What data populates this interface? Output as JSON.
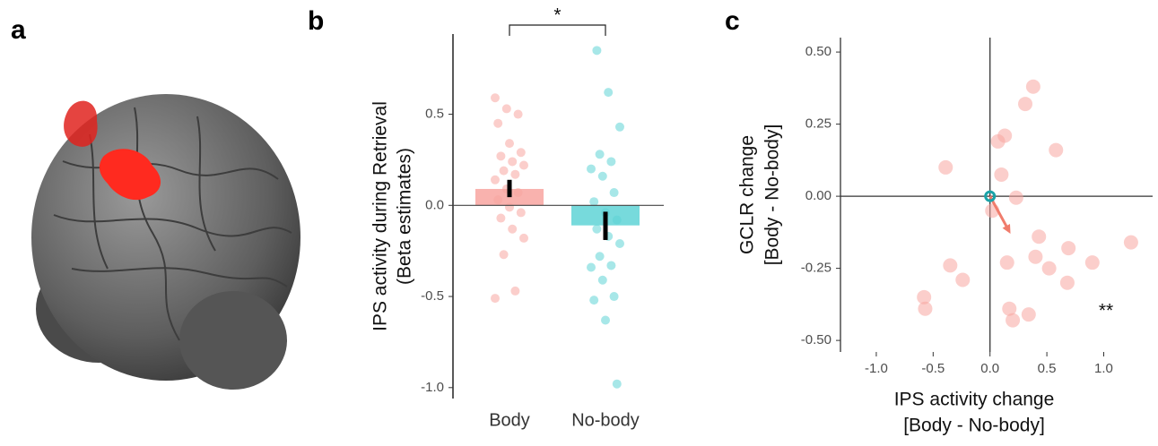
{
  "panel_labels": [
    "a",
    "b",
    "c"
  ],
  "chart_data": [
    {
      "type": "bar",
      "categories": [
        "Body",
        "No-body"
      ],
      "values": [
        0.09,
        -0.11
      ],
      "colors": [
        "#f8a5a0",
        "#5fd3d6"
      ],
      "error_low": [
        0.045,
        -0.19
      ],
      "error_high": [
        0.14,
        -0.035
      ],
      "points": [
        [
          0.59,
          0.53,
          0.5,
          0.45,
          0.34,
          0.29,
          0.27,
          0.24,
          0.22,
          0.19,
          0.17,
          0.14,
          0.09,
          0.07,
          0.03,
          -0.01,
          -0.04,
          -0.07,
          -0.13,
          -0.18,
          -0.27,
          -0.47,
          -0.51
        ],
        [
          0.85,
          0.62,
          0.43,
          0.28,
          0.24,
          0.2,
          0.16,
          0.07,
          0.02,
          -0.04,
          -0.08,
          -0.13,
          -0.17,
          -0.21,
          -0.28,
          -0.33,
          -0.34,
          -0.41,
          -0.5,
          -0.52,
          -0.63,
          -0.98
        ]
      ],
      "y_label": [
        "IPS activity during Retrieval",
        "(Beta estimates)"
      ],
      "ylim": [
        -1.06,
        0.94
      ],
      "yticks": [
        {
          "value": -1,
          "label": "-1.0"
        },
        -0.5,
        {
          "value": 0,
          "label": "0.0"
        },
        0.5
      ],
      "annotation": "*"
    },
    {
      "type": "scatter",
      "x": [
        0.38,
        0.31,
        0.13,
        0.07,
        0.58,
        -0.39,
        0.1,
        0.23,
        0.02,
        0.43,
        1.24,
        0.69,
        0.4,
        0.52,
        0.9,
        -0.35,
        0.15,
        -0.24,
        0.68,
        -0.58,
        -0.57,
        0.17,
        0.34,
        0.2
      ],
      "y": [
        0.38,
        0.32,
        0.21,
        0.19,
        0.16,
        0.1,
        0.075,
        -0.005,
        -0.05,
        -0.14,
        -0.16,
        -0.18,
        -0.21,
        -0.25,
        -0.23,
        -0.24,
        -0.23,
        -0.29,
        -0.3,
        -0.35,
        -0.39,
        -0.39,
        -0.41,
        -0.43
      ],
      "color": "#f8a5a0",
      "mean_vector": {
        "x": 0.18,
        "y": -0.13,
        "color": "#f07c6c"
      },
      "x_label": [
        "IPS activity change",
        "[Body - No-body]"
      ],
      "y_label": [
        "GCLR change",
        "[Body - No-body]"
      ],
      "xlim": [
        -1.315,
        1.43
      ],
      "ylim": [
        -0.54,
        0.55
      ],
      "xticks": [
        {
          "value": -1,
          "label": "-1.0"
        },
        -0.5,
        {
          "value": 0,
          "label": "0.0"
        },
        0.5,
        {
          "value": 1,
          "label": "1.0"
        }
      ],
      "yticks": [
        {
          "value": -0.5,
          "label": "-0.50"
        },
        -0.25,
        {
          "value": 0,
          "label": "0.00"
        },
        0.25,
        {
          "value": 0.5,
          "label": "0.50"
        }
      ],
      "annotation": "**"
    }
  ]
}
